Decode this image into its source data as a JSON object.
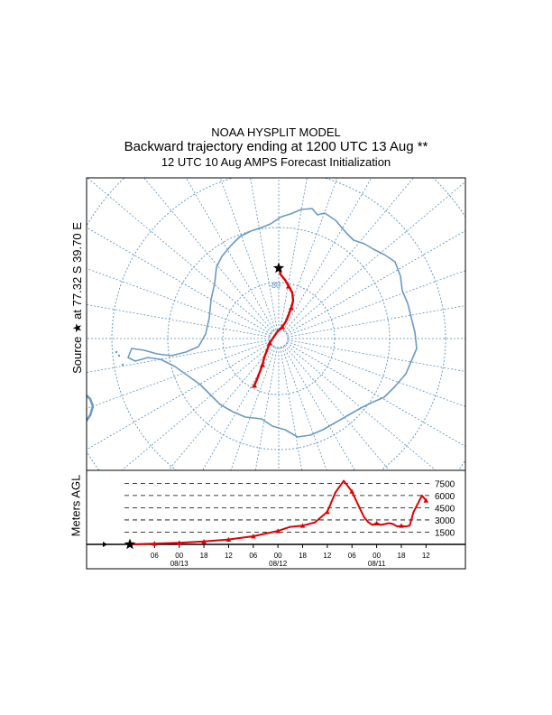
{
  "header": {
    "model": "NOAA HYSPLIT MODEL",
    "title": "Backward trajectory ending at 1200 UTC 13 Aug **",
    "subtitle": "12 UTC 10 Aug    AMPS  Forecast Initialization"
  },
  "source_label": "Source ★ at   77.32 S   39.70 E",
  "map": {
    "lat_marker": "-80",
    "colors": {
      "grid": "#5b8fc0",
      "coast": "#6a9ac4",
      "trajectory": "#e00000",
      "star": "#000000"
    }
  },
  "chart_data": {
    "type": "line",
    "ylabel": "Meters AGL",
    "height_ticks": [
      "7500",
      "6000",
      "4500",
      "3000",
      "1500"
    ],
    "time_ticks": [
      "06",
      "00",
      "18",
      "12",
      "06",
      "00",
      "18",
      "12",
      "06",
      "00",
      "18",
      "12"
    ],
    "date_labels": [
      "08/13",
      "08/12",
      "08/11"
    ],
    "series": [
      {
        "hours_back": [
          0,
          6,
          12,
          18,
          24,
          30,
          36,
          39,
          42,
          45,
          48,
          50,
          52,
          54,
          55,
          56,
          57,
          58,
          59,
          60,
          61,
          62,
          63,
          64,
          65,
          66,
          67,
          68,
          69,
          70,
          71,
          72
        ],
        "height_m": [
          0,
          100,
          200,
          350,
          600,
          1000,
          1650,
          2150,
          2300,
          2700,
          4000,
          6400,
          7800,
          6500,
          5400,
          4300,
          3300,
          2700,
          2400,
          2600,
          2400,
          2500,
          2600,
          2500,
          2200,
          2300,
          2200,
          2300,
          4000,
          5000,
          6000,
          5400
        ]
      }
    ]
  }
}
